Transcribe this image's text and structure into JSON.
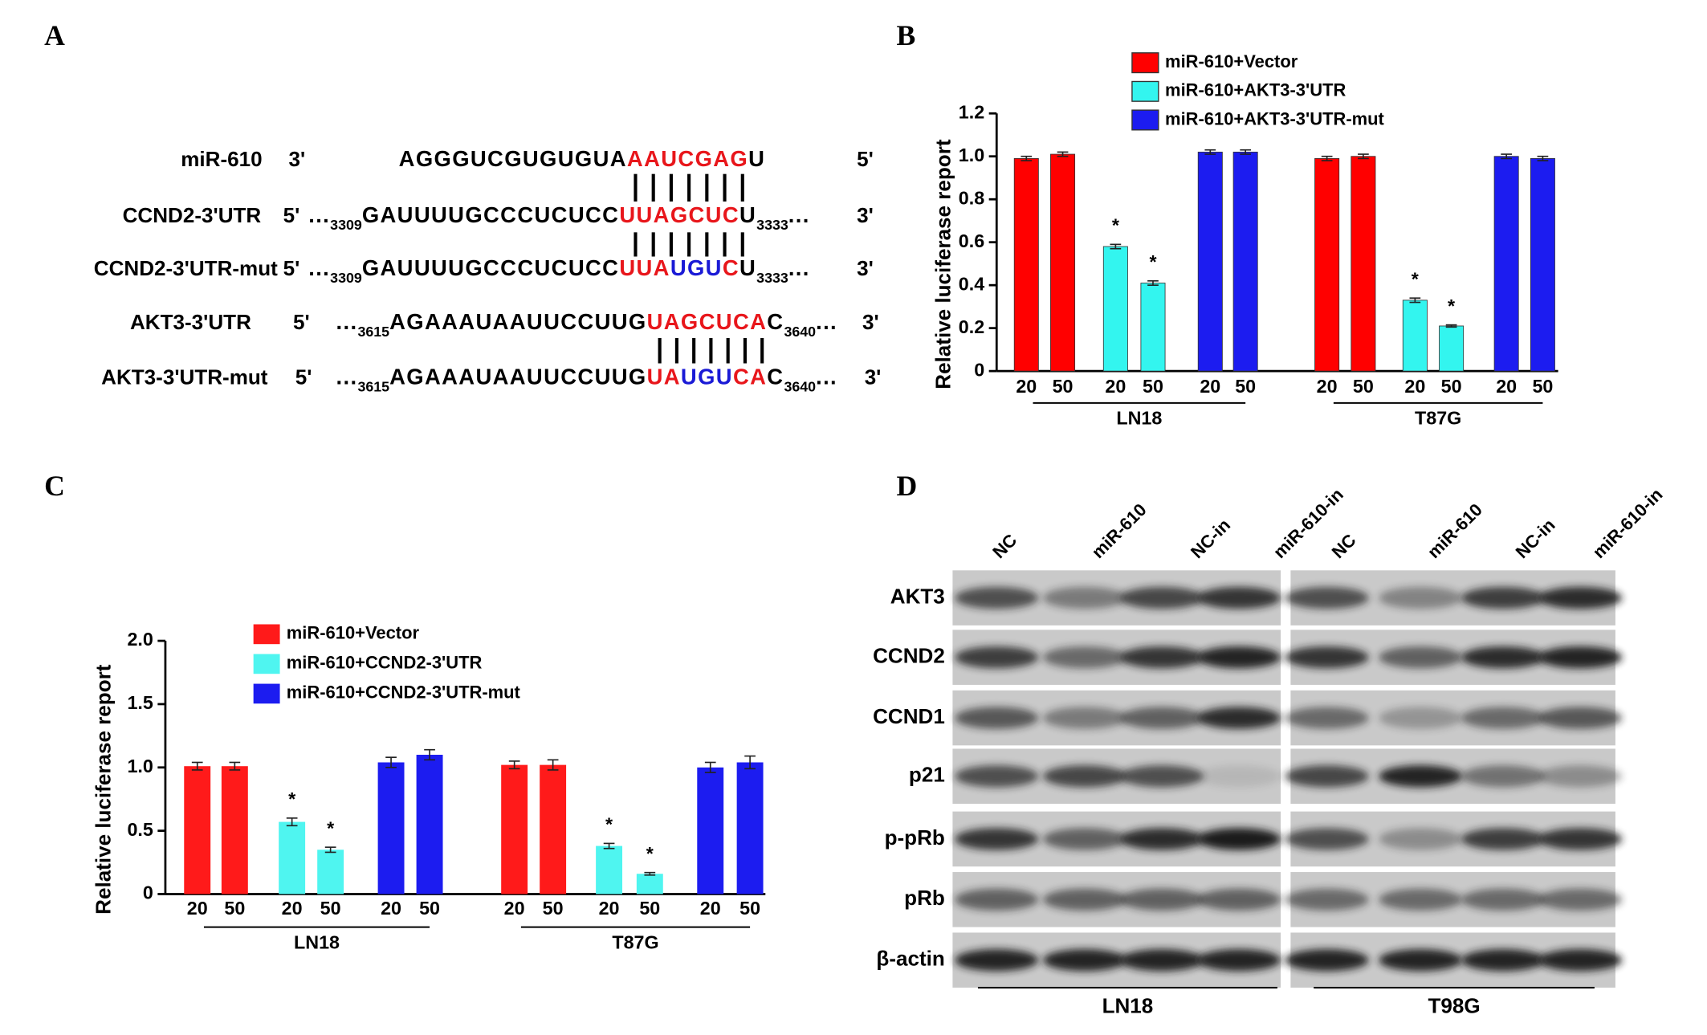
{
  "panel_a": {
    "label": "A",
    "rows": [
      {
        "name": "miR-610",
        "left_end": "3'",
        "right_end": "5'",
        "segments": [
          {
            "text": "AGGGUCGUGUGUA",
            "color": "#000000"
          },
          {
            "text": "AAUCGAG",
            "color": "#e8161b"
          },
          {
            "text": "U",
            "color": "#000000"
          }
        ]
      },
      {
        "name": "CCND2-3'UTR",
        "left_end": "5'",
        "right_end": "3'",
        "segments": [
          {
            "text": "...",
            "color": "#000000"
          },
          {
            "text": "3309",
            "color": "#000000",
            "sub": true
          },
          {
            "text": "GAUUUUGCCCUCUCC",
            "color": "#000000"
          },
          {
            "text": "UUAGCUC",
            "color": "#e8161b"
          },
          {
            "text": "U",
            "color": "#000000"
          },
          {
            "text": "3333",
            "color": "#000000",
            "sub": true
          },
          {
            "text": "...",
            "color": "#000000"
          }
        ]
      },
      {
        "name": "CCND2-3'UTR-mut",
        "left_end": "5'",
        "right_end": "3'",
        "segments": [
          {
            "text": "...",
            "color": "#000000"
          },
          {
            "text": "3309",
            "color": "#000000",
            "sub": true
          },
          {
            "text": "GAUUUUGCCCUCUCC",
            "color": "#000000"
          },
          {
            "text": "UUA",
            "color": "#e8161b"
          },
          {
            "text": "UGU",
            "color": "#1a1ad6"
          },
          {
            "text": "C",
            "color": "#e8161b"
          },
          {
            "text": "U",
            "color": "#000000"
          },
          {
            "text": "3333",
            "color": "#000000",
            "sub": true
          },
          {
            "text": "...",
            "color": "#000000"
          }
        ]
      },
      {
        "name": "AKT3-3'UTR",
        "left_end": "5'",
        "right_end": "3'",
        "segments": [
          {
            "text": "...",
            "color": "#000000"
          },
          {
            "text": "3615",
            "color": "#000000",
            "sub": true
          },
          {
            "text": "AGAAAUAAUUCCUUG",
            "color": "#000000"
          },
          {
            "text": "UAGCUCA",
            "color": "#e8161b"
          },
          {
            "text": "C",
            "color": "#000000"
          },
          {
            "text": "3640",
            "color": "#000000",
            "sub": true
          },
          {
            "text": "...",
            "color": "#000000"
          }
        ]
      },
      {
        "name": "AKT3-3'UTR-mut",
        "left_end": "5'",
        "right_end": "3'",
        "segments": [
          {
            "text": "...",
            "color": "#000000"
          },
          {
            "text": "3615",
            "color": "#000000",
            "sub": true
          },
          {
            "text": "AGAAAUAAUUCCUUG",
            "color": "#000000"
          },
          {
            "text": "UA",
            "color": "#e8161b"
          },
          {
            "text": "UGU",
            "color": "#1a1ad6"
          },
          {
            "text": "CA",
            "color": "#e8161b"
          },
          {
            "text": "C",
            "color": "#000000"
          },
          {
            "text": "3640",
            "color": "#000000",
            "sub": true
          },
          {
            "text": "...",
            "color": "#000000"
          }
        ]
      }
    ]
  },
  "chart_data": [
    {
      "type": "bar",
      "panel_label": "B",
      "y_label": "Relative luciferase report",
      "categories": [
        "20",
        "50",
        "20",
        "50",
        "20",
        "50",
        "20",
        "50",
        "20",
        "50",
        "20",
        "50"
      ],
      "groups": [
        "LN18",
        "T87G"
      ],
      "series": [
        {
          "name": "miR-610+Vector",
          "color": "#ff0000",
          "values": [
            0.99,
            1.01,
            null,
            null,
            null,
            null,
            0.99,
            1.0,
            null,
            null,
            null,
            null
          ],
          "errors": [
            0.01,
            0.01,
            null,
            null,
            null,
            null,
            0.01,
            0.01,
            null,
            null,
            null,
            null
          ]
        },
        {
          "name": "miR-610+AKT3-3'UTR",
          "color": "#33f5ef",
          "values": [
            null,
            null,
            0.58,
            0.41,
            null,
            null,
            null,
            null,
            0.33,
            0.21,
            null,
            null
          ],
          "errors": [
            null,
            null,
            0.01,
            0.01,
            null,
            null,
            null,
            null,
            0.01,
            0.005,
            null,
            null
          ],
          "significance": [
            null,
            null,
            "*",
            "*",
            null,
            null,
            null,
            null,
            "*",
            "*",
            null,
            null
          ]
        },
        {
          "name": "miR-610+AKT3-3'UTR-mut",
          "color": "#1c1cf0",
          "values": [
            null,
            null,
            null,
            null,
            1.02,
            1.02,
            null,
            null,
            null,
            null,
            1.0,
            0.99
          ],
          "errors": [
            null,
            null,
            null,
            null,
            0.01,
            0.01,
            null,
            null,
            null,
            null,
            0.01,
            0.01
          ]
        }
      ],
      "ylim": [
        0,
        1.2
      ],
      "yticks": [
        0,
        0.2,
        0.4,
        0.6,
        0.8,
        {
          "value": 1,
          "label": "1.0"
        },
        1.2
      ]
    },
    {
      "type": "bar",
      "panel_label": "C",
      "y_label": "Relative luciferase report",
      "categories": [
        "20",
        "50",
        "20",
        "50",
        "20",
        "50",
        "20",
        "50",
        "20",
        "50",
        "20",
        "50"
      ],
      "groups": [
        "LN18",
        "T87G"
      ],
      "series": [
        {
          "name": "miR-610+Vector",
          "color": "#ff1a1a",
          "values": [
            1.01,
            1.01,
            null,
            null,
            null,
            null,
            1.02,
            1.02,
            null,
            null,
            null,
            null
          ],
          "errors": [
            0.03,
            0.03,
            null,
            null,
            null,
            null,
            0.03,
            0.04,
            null,
            null,
            null,
            null
          ]
        },
        {
          "name": "miR-610+CCND2-3'UTR",
          "color": "#4ff5f0",
          "values": [
            null,
            null,
            0.57,
            0.35,
            null,
            null,
            null,
            null,
            0.38,
            0.16,
            null,
            null
          ],
          "errors": [
            null,
            null,
            0.03,
            0.02,
            null,
            null,
            null,
            null,
            0.02,
            0.01,
            null,
            null
          ],
          "significance": [
            null,
            null,
            "*",
            "*",
            null,
            null,
            null,
            null,
            "*",
            "*",
            null,
            null
          ]
        },
        {
          "name": "miR-610+CCND2-3'UTR-mut",
          "color": "#1c1cf0",
          "values": [
            null,
            null,
            null,
            null,
            1.04,
            1.1,
            null,
            null,
            null,
            null,
            1.0,
            1.04
          ],
          "errors": [
            null,
            null,
            null,
            null,
            0.04,
            0.04,
            null,
            null,
            null,
            null,
            0.04,
            0.05
          ]
        }
      ],
      "ylim": [
        0,
        2.0
      ],
      "yticks": [
        0,
        0.5,
        {
          "value": 1,
          "label": "1.0"
        },
        1.5,
        {
          "value": 2,
          "label": "2.0"
        }
      ]
    }
  ],
  "panel_d": {
    "label": "D",
    "proteins": [
      "AKT3",
      "CCND2",
      "CCND1",
      "p21",
      "p-pRb",
      "pRb",
      "β-actin"
    ],
    "blocks": [
      {
        "cell_line": "LN18",
        "lanes": [
          "NC",
          "miR-610",
          "NC-in",
          "miR-610-in"
        ]
      },
      {
        "cell_line": "T98G",
        "lanes": [
          "NC",
          "miR-610",
          "NC-in",
          "miR-610-in"
        ]
      }
    ]
  }
}
